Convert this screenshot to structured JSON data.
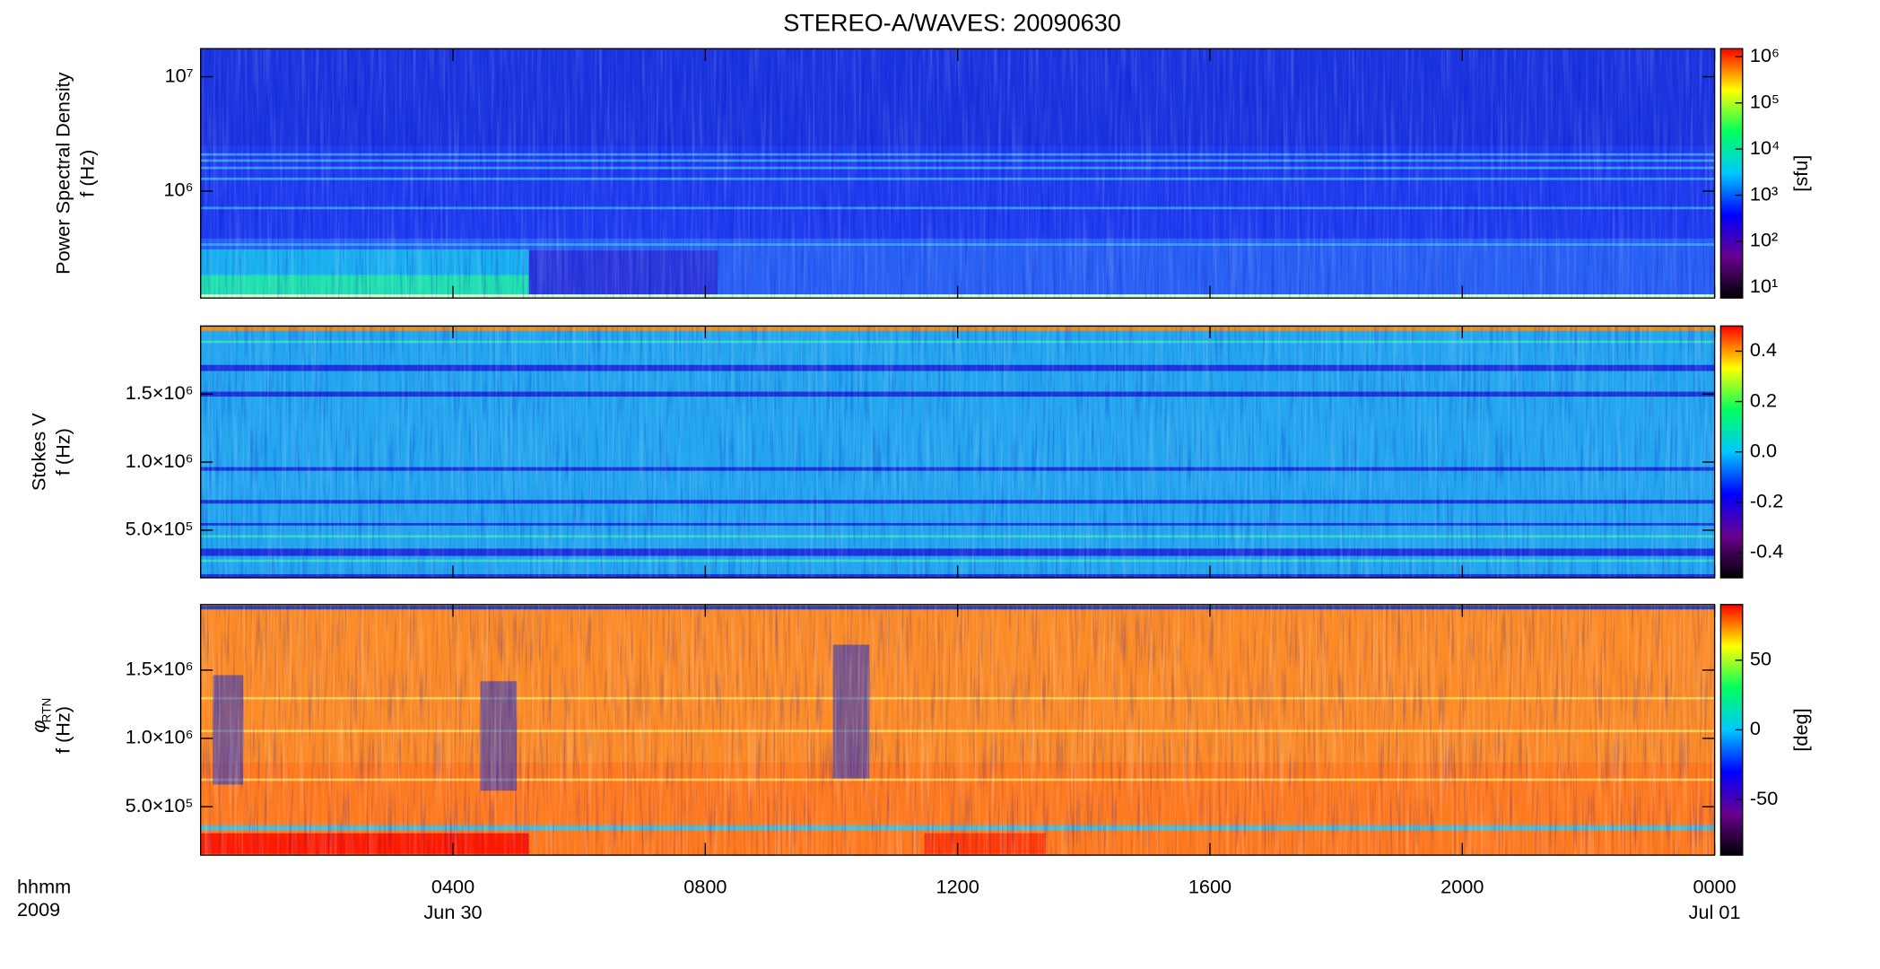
{
  "chart_data": [
    {
      "type": "spectrogram",
      "title": "STEREO-A/WAVES: 20090630",
      "ylabel": [
        "Power Spectral Density",
        "f (Hz)"
      ],
      "yscale": "log",
      "ylim": [
        116000,
        17600000
      ],
      "yticks": [
        {
          "value": 1000000,
          "label": "10⁶"
        },
        {
          "value": 10000000,
          "label": "10⁷"
        }
      ],
      "cscale": "log",
      "clim": [
        5.9,
        1500000
      ],
      "cticks": [
        {
          "value": 10,
          "label": "10¹"
        },
        {
          "value": 100,
          "label": "10²"
        },
        {
          "value": 1000,
          "label": "10³"
        },
        {
          "value": 10000,
          "label": "10⁴"
        },
        {
          "value": 100000,
          "label": "10⁵"
        },
        {
          "value": 1000000,
          "label": "10⁶"
        }
      ],
      "clabel": "[sfu]",
      "colormap": [
        "#000000",
        "#6a0090",
        "#0000ff",
        "#00c8ff",
        "#00ff60",
        "#ffff00",
        "#ff0000"
      ]
    },
    {
      "type": "spectrogram",
      "ylabel": [
        "Stokes V",
        "f (Hz)"
      ],
      "yscale": "linear",
      "ylim": [
        150000,
        2000000
      ],
      "yticks": [
        {
          "value": 500000,
          "label": "5.0×10⁵"
        },
        {
          "value": 1000000,
          "label": "1.0×10⁶"
        },
        {
          "value": 1500000,
          "label": "1.5×10⁶"
        }
      ],
      "cscale": "linear",
      "clim": [
        -0.5,
        0.5
      ],
      "cticks": [
        -0.4,
        -0.2,
        {
          "value": 0,
          "label": "0.0"
        },
        0.2,
        0.4
      ],
      "colormap": [
        "#000000",
        "#6a0090",
        "#0000ff",
        "#00c8ff",
        "#00ff60",
        "#ffff00",
        "#ff0000"
      ]
    },
    {
      "type": "spectrogram",
      "ylabel_symbol": "φ",
      "ylabel_subscript": "RTN",
      "ylabel": [
        "f (Hz)"
      ],
      "yscale": "linear",
      "ylim": [
        145000,
        1980000
      ],
      "yticks": [
        {
          "value": 500000,
          "label": "5.0×10⁵"
        },
        {
          "value": 1000000,
          "label": "1.0×10⁶"
        },
        {
          "value": 1500000,
          "label": "1.5×10⁶"
        }
      ],
      "cscale": "linear",
      "clim": [
        -90,
        90
      ],
      "cticks": [
        -50,
        0,
        50
      ],
      "clabel": "[deg]",
      "colormap": [
        "#000000",
        "#6a0090",
        "#0000ff",
        "#00c8ff",
        "#00ff60",
        "#ffff00",
        "#ff0000"
      ],
      "xlim": [
        0,
        24
      ],
      "xticks": [
        {
          "value": 4,
          "label": "0400"
        },
        {
          "value": 8,
          "label": "0800"
        },
        {
          "value": 12,
          "label": "1200"
        },
        {
          "value": 16,
          "label": "1600"
        },
        {
          "value": 20,
          "label": "2000"
        },
        {
          "value": 24,
          "label": "0000"
        }
      ],
      "date_labels": [
        {
          "value": 4,
          "label": "Jun 30"
        },
        {
          "value": 24,
          "label": "Jul 01"
        }
      ],
      "xlabel": [
        "hhmm",
        "2009"
      ]
    }
  ]
}
